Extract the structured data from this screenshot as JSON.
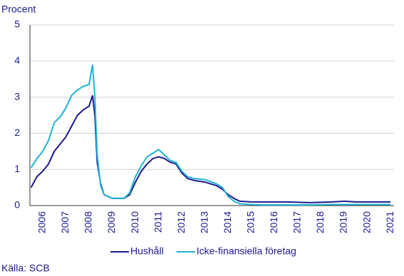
{
  "chart_data": {
    "type": "line",
    "y_label": "Procent",
    "source": "Källa: SCB",
    "x": [
      2006.0,
      2006.25,
      2006.5,
      2006.75,
      2007.0,
      2007.25,
      2007.5,
      2007.75,
      2008.0,
      2008.25,
      2008.5,
      2008.65,
      2008.75,
      2008.85,
      2009.0,
      2009.15,
      2009.5,
      2010.0,
      2010.25,
      2010.5,
      2010.75,
      2011.0,
      2011.25,
      2011.5,
      2011.75,
      2012.0,
      2012.25,
      2012.5,
      2012.75,
      2013.0,
      2013.5,
      2014.0,
      2014.25,
      2014.5,
      2014.75,
      2015.0,
      2015.5,
      2016.0,
      2017.0,
      2018.0,
      2019.0,
      2019.5,
      2020.0,
      2021.5
    ],
    "series": [
      {
        "name": "Hushåll",
        "color": "#1b1a8e",
        "values": [
          0.5,
          0.8,
          0.95,
          1.15,
          1.5,
          1.7,
          1.9,
          2.2,
          2.5,
          2.65,
          2.75,
          3.05,
          2.5,
          1.2,
          0.6,
          0.3,
          0.2,
          0.2,
          0.3,
          0.65,
          0.95,
          1.15,
          1.3,
          1.35,
          1.3,
          1.2,
          1.15,
          0.9,
          0.75,
          0.7,
          0.65,
          0.55,
          0.45,
          0.3,
          0.2,
          0.12,
          0.1,
          0.1,
          0.1,
          0.08,
          0.1,
          0.12,
          0.1,
          0.1
        ]
      },
      {
        "name": "Icke-finansiella företag",
        "color": "#1fb4d2",
        "values": [
          1.05,
          1.3,
          1.5,
          1.8,
          2.3,
          2.45,
          2.7,
          3.05,
          3.2,
          3.3,
          3.35,
          3.9,
          3.0,
          1.4,
          0.55,
          0.3,
          0.2,
          0.2,
          0.35,
          0.8,
          1.1,
          1.35,
          1.45,
          1.55,
          1.4,
          1.25,
          1.2,
          0.95,
          0.8,
          0.75,
          0.72,
          0.6,
          0.5,
          0.25,
          0.12,
          0.05,
          0.03,
          0.02,
          0.02,
          0.02,
          0.03,
          0.03,
          0.03,
          0.03
        ]
      }
    ],
    "xlim": [
      2005.95,
      2021.65
    ],
    "xticks": [
      {
        "value": 2006.5,
        "label": "2006"
      },
      {
        "value": 2007.5,
        "label": "2007"
      },
      {
        "value": 2008.5,
        "label": "2008"
      },
      {
        "value": 2009.5,
        "label": "2009"
      },
      {
        "value": 2010.5,
        "label": "2010"
      },
      {
        "value": 2011.5,
        "label": "2011"
      },
      {
        "value": 2012.5,
        "label": "2012"
      },
      {
        "value": 2013.5,
        "label": "2013"
      },
      {
        "value": 2014.5,
        "label": "2014"
      },
      {
        "value": 2015.5,
        "label": "2015"
      },
      {
        "value": 2016.5,
        "label": "2016"
      },
      {
        "value": 2017.5,
        "label": "2017"
      },
      {
        "value": 2018.5,
        "label": "2018"
      },
      {
        "value": 2019.5,
        "label": "2019"
      },
      {
        "value": 2020.5,
        "label": "2020"
      },
      {
        "value": 2021.5,
        "label": "2021"
      }
    ],
    "ylim": [
      0,
      5
    ],
    "yticks": [
      0,
      1,
      2,
      3,
      4,
      5
    ],
    "grid": true
  }
}
